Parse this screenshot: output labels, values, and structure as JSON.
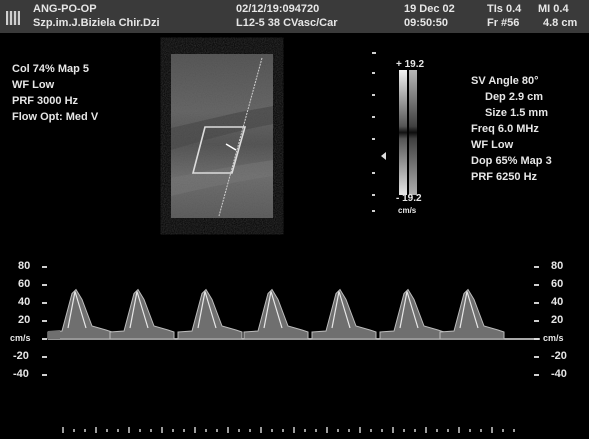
{
  "header": {
    "line1_left": "ANG-PO-OP",
    "line2_left": "Szp.im.J.Biziela Chir.Dzi",
    "line1_mid": "02/12/19:094720",
    "line2_mid": "L12-5 38 CVasc/Car",
    "date": "19 Dec 02",
    "time": "09:50:50",
    "tis": "TIs 0.4",
    "mi": "MI 0.4",
    "frame": "Fr #56",
    "depth": "4.8 cm"
  },
  "left_panel": [
    "Col 74%  Map 5",
    "WF Low",
    "PRF 3000  Hz",
    "Flow Opt: Med V"
  ],
  "right_panel": [
    "SV Angle 80°",
    "Dep 2.9  cm",
    "Size 1.5  mm",
    "Freq 6.0  MHz",
    "WF Low",
    "Dop 65%  Map 3",
    "PRF 6250  Hz"
  ],
  "color_scale": {
    "top": "+ 19.2",
    "bottom": "- 19.2",
    "unit": "cm/s"
  },
  "spectrum": {
    "y_ticks": [
      "80",
      "60",
      "40",
      "20",
      "cm/s",
      "-20",
      "-40"
    ],
    "y_values": [
      80,
      60,
      40,
      20,
      0,
      -20,
      -40
    ],
    "unit": "cm/s",
    "peak_velocity_cm_s": 55,
    "baseline_velocity_cm_s": 10,
    "beats": 7
  }
}
